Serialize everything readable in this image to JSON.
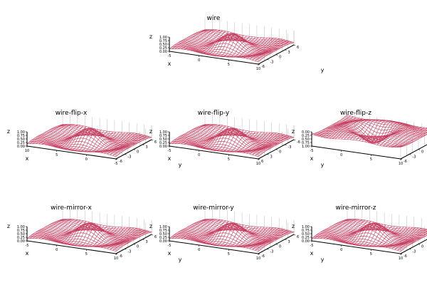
{
  "figure": {
    "background": "#ffffff",
    "wire_color": "#c43c5f",
    "axis_color": "#000000",
    "grid_color": "#bbbbbb"
  },
  "chart_data": [
    {
      "type": "surface-wireframe",
      "title": "wire",
      "xlabel": "x",
      "ylabel": "y",
      "zlabel": "z",
      "function": "sinc(sqrt(x^2+y^2))",
      "xlim": [
        -5,
        10
      ],
      "ylim": [
        -6,
        6
      ],
      "zlim": [
        0,
        1
      ],
      "xticks": [
        "-5",
        "0",
        "5",
        "10"
      ],
      "yticks": [
        "-6",
        "-3",
        "0",
        "3",
        "6"
      ],
      "zticks": [
        "0.00",
        "0.25",
        "0.50",
        "0.75",
        "1.00"
      ],
      "flip": "",
      "mirror": ""
    },
    {
      "type": "surface-wireframe",
      "title": "wire-flip-x",
      "xlabel": "x",
      "ylabel": "y",
      "zlabel": "z",
      "function": "sinc(sqrt(x^2+y^2))",
      "xlim": [
        -5,
        10
      ],
      "ylim": [
        -6,
        6
      ],
      "zlim": [
        0,
        1
      ],
      "xticks": [
        "10",
        "5",
        "0",
        "-5"
      ],
      "yticks": [
        "-6",
        "-3",
        "0",
        "3",
        "6"
      ],
      "zticks": [
        "0.00",
        "0.25",
        "0.50",
        "0.75",
        "1.00"
      ],
      "flip": "x",
      "mirror": ""
    },
    {
      "type": "surface-wireframe",
      "title": "wire-flip-y",
      "xlabel": "x",
      "ylabel": "y",
      "zlabel": "z",
      "function": "sinc(sqrt(x^2+y^2))",
      "xlim": [
        -5,
        10
      ],
      "ylim": [
        -6,
        6
      ],
      "zlim": [
        0,
        1
      ],
      "xticks": [
        "-5",
        "0",
        "5",
        "10"
      ],
      "yticks": [
        "6",
        "3",
        "0",
        "-3",
        "-6"
      ],
      "zticks": [
        "0.00",
        "0.25",
        "0.50",
        "0.75",
        "1.00"
      ],
      "flip": "y",
      "mirror": ""
    },
    {
      "type": "surface-wireframe",
      "title": "wire-flip-z",
      "xlabel": "x",
      "ylabel": "y",
      "zlabel": "z",
      "function": "sinc(sqrt(x^2+y^2))",
      "xlim": [
        -5,
        10
      ],
      "ylim": [
        -6,
        6
      ],
      "zlim": [
        0,
        1
      ],
      "xticks": [
        "-5",
        "0",
        "5",
        "10"
      ],
      "yticks": [
        "-6",
        "-3",
        "0",
        "3",
        "6"
      ],
      "zticks": [
        "1.00",
        "0.75",
        "0.50",
        "0.25",
        "0.00"
      ],
      "flip": "z",
      "mirror": ""
    },
    {
      "type": "surface-wireframe",
      "title": "wire-mirror-x",
      "xlabel": "x",
      "ylabel": "y",
      "zlabel": "z",
      "function": "sinc(sqrt(x^2+y^2))",
      "xlim": [
        -5,
        10
      ],
      "ylim": [
        -6,
        6
      ],
      "zlim": [
        0,
        1
      ],
      "xticks": [
        "-5",
        "0",
        "5",
        "10"
      ],
      "yticks": [
        "-6",
        "-3",
        "0",
        "3",
        "6"
      ],
      "zticks": [
        "0.00",
        "0.25",
        "0.50",
        "0.75",
        "1.00"
      ],
      "flip": "",
      "mirror": "x"
    },
    {
      "type": "surface-wireframe",
      "title": "wire-mirror-y",
      "xlabel": "x",
      "ylabel": "y",
      "zlabel": "z",
      "function": "sinc(sqrt(x^2+y^2))",
      "xlim": [
        -5,
        10
      ],
      "ylim": [
        -6,
        6
      ],
      "zlim": [
        0,
        1
      ],
      "xticks": [
        "-5",
        "0",
        "5",
        "10"
      ],
      "yticks": [
        "-6",
        "-3",
        "0",
        "3",
        "6"
      ],
      "zticks": [
        "0.00",
        "0.25",
        "0.50",
        "0.75",
        "1.00"
      ],
      "flip": "",
      "mirror": "y"
    },
    {
      "type": "surface-wireframe",
      "title": "wire-mirror-z",
      "xlabel": "x",
      "ylabel": "y",
      "zlabel": "z",
      "function": "sinc(sqrt(x^2+y^2))",
      "xlim": [
        -5,
        10
      ],
      "ylim": [
        -6,
        6
      ],
      "zlim": [
        0,
        1
      ],
      "xticks": [
        "-5",
        "0",
        "5",
        "10"
      ],
      "yticks": [
        "-6",
        "-3",
        "0",
        "3",
        "6"
      ],
      "zticks": [
        "0.00",
        "0.25",
        "0.50",
        "0.75",
        "1.00"
      ],
      "flip": "",
      "mirror": "z"
    }
  ]
}
